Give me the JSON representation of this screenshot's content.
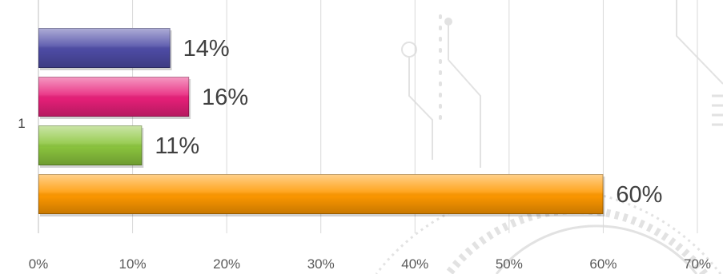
{
  "chart_data": {
    "type": "bar",
    "orientation": "horizontal",
    "categories": [
      "1"
    ],
    "series": [
      {
        "values": [
          0.14
        ],
        "color": "#4e4ca6",
        "label": "14%"
      },
      {
        "values": [
          0.16
        ],
        "color": "#e8207a",
        "label": "16%"
      },
      {
        "values": [
          0.11
        ],
        "color": "#8cc63e",
        "label": "11%"
      },
      {
        "values": [
          0.6
        ],
        "color": "#ff9900",
        "label": "60%"
      }
    ],
    "xlim": [
      0,
      0.7
    ],
    "x_ticks": [
      0,
      0.1,
      0.2,
      0.3,
      0.4,
      0.5,
      0.6,
      0.7
    ],
    "x_tick_labels": [
      "0%",
      "10%",
      "20%",
      "30%",
      "40%",
      "50%",
      "60%",
      "70%"
    ],
    "grid": "vertical",
    "legend": "none"
  }
}
